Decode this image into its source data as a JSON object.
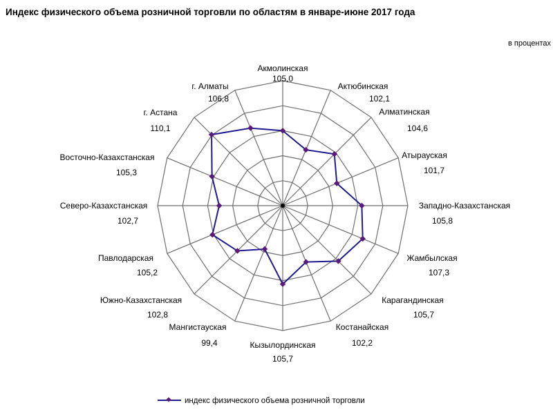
{
  "chart_data": {
    "type": "radar",
    "title": "Индекс физического объема розничной торговли по областям в январе-июне 2017 года",
    "unit_note": "в процентах",
    "categories": [
      "Акмолинская",
      "Актюбинская",
      "Алматинская",
      "Атырауская",
      "Западно-Казахстанская",
      "Жамбылская",
      "Карагандинская",
      "Костанайская",
      "Кызылординская",
      "Мангистауская",
      "Южно-Казахстанская",
      "Павлодарская",
      "Северо-Казахстанская",
      "Восточно-Казахстанская",
      "г. Астана",
      "г. Алматы"
    ],
    "value_labels": [
      "105,0",
      "102,1",
      "104,6",
      "101,7",
      "105,8",
      "107,3",
      "105,7",
      "102,2",
      "105,7",
      "99,4",
      "102,8",
      "105,2",
      "102,7",
      "105,3",
      "110,1",
      "106,8"
    ],
    "series": [
      {
        "name": "индекс физического объема розничной торговли",
        "values": [
          105.0,
          102.1,
          104.6,
          101.7,
          105.8,
          107.3,
          105.7,
          102.2,
          105.7,
          99.4,
          102.8,
          105.2,
          102.7,
          105.3,
          110.1,
          106.8
        ],
        "color": "#1f1a8c",
        "marker_color": "#5a1a7a"
      }
    ],
    "rlim": [
      90,
      115
    ],
    "ring_step": 5,
    "grid": true,
    "legend_position": "bottom"
  }
}
